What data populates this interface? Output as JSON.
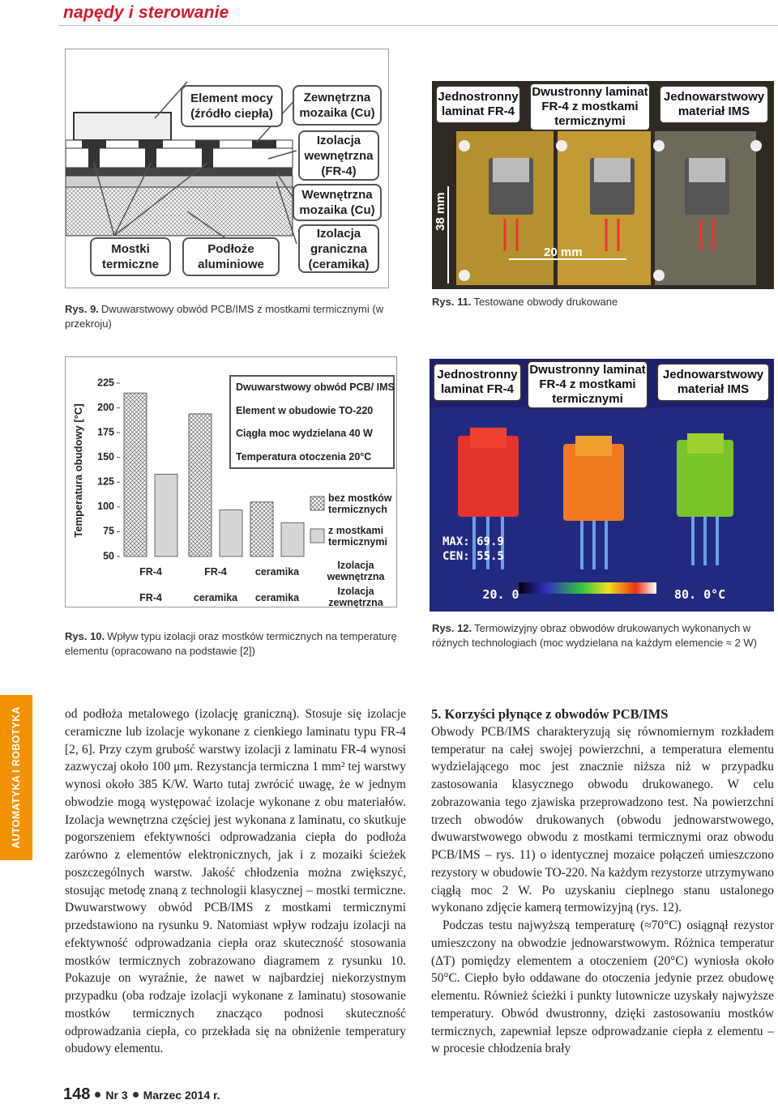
{
  "header": {
    "section": "napędy i sterowanie"
  },
  "sidebar": {
    "label": "AUTOMATYKA I ROBOTYKA"
  },
  "figure9": {
    "labels": {
      "element": "Element mocy (źródło ciepła)",
      "outer_cu": "Zewnętrzna mozaika (Cu)",
      "inner_iso": "Izolacja wewnętrzna (FR-4)",
      "inner_cu": "Wewnętrzna mozaika (Cu)",
      "border_iso": "Izolacja graniczna (ceramika)",
      "bridges": "Mostki termiczne",
      "substrate": "Podłoże aluminiowe"
    },
    "caption_label": "Rys. 9.",
    "caption": "Dwuwarstwowy obwód PCB/IMS z mostkami termicznymi (w przekroju)"
  },
  "figure11": {
    "labels": [
      "Jednostronny laminat FR-4",
      "Dwustronny laminat FR-4 z mostkami termicznymi",
      "Jednowarstwowy materiał IMS"
    ],
    "height_label": "38 mm",
    "width_label": "20 mm",
    "caption_label": "Rys. 11.",
    "caption": "Testowane obwody drukowane"
  },
  "figure12": {
    "labels": [
      "Jednostronny laminat FR-4",
      "Dwustronny laminat FR-4 z mostkami termicznymi",
      "Jednowarstwowy materiał IMS"
    ],
    "max": "MAX: 69.9",
    "cen": "CEN: 55.5",
    "scale_min": "20. 0",
    "scale_max": "80. 0°C",
    "caption_label": "Rys. 12.",
    "caption": "Termowizyjny obraz obwodów drukowanych wykonanych w różnych technologiach (moc wydzielana na każdym elemencie ≈ 2 W)"
  },
  "chart_data": {
    "type": "bar",
    "y_label": "Temperatura obudowy [°C]",
    "ylim": [
      50,
      225
    ],
    "yticks": [
      50,
      75,
      100,
      125,
      150,
      175,
      200,
      225
    ],
    "info": [
      "Dwuwarstwowy obwód PCB/ IMS",
      "Element w obudowie TO-220",
      "Ciągła moc wydzielana 40 W",
      "Temperatura otoczenia 20°C"
    ],
    "category_rows": [
      {
        "name": "Izolacja wewnętrzna",
        "labels": [
          "FR-4",
          "FR-4",
          "ceramika"
        ]
      },
      {
        "name": "Izolacja zewnętrzna",
        "labels": [
          "FR-4",
          "ceramika",
          "ceramika"
        ]
      }
    ],
    "series": [
      {
        "name": "bez mostków termicznych",
        "color": "#ffffff",
        "hatch": true,
        "values": [
          215,
          194,
          105
        ]
      },
      {
        "name": "z mostkami termicznymi",
        "color": "#d6d6d6",
        "hatch": false,
        "values": [
          133,
          97,
          84
        ]
      }
    ],
    "caption_label": "Rys. 10.",
    "caption": "Wpływ typu izolacji oraz mostków termicznych na temperaturę elementu (opracowano na podstawie [2])"
  },
  "body": {
    "left": [
      "od podłoża metalowego (izolację graniczną). Stosuje się izolacje ceramiczne lub izolacje wykonane z cienkiego laminatu typu FR-4 [2, 6]. Przy czym grubość warstwy izolacji z laminatu FR-4 wynosi zazwyczaj około 100 μm. Rezystancja termiczna 1 mm² tej warstwy wynosi około 385 K/W. Warto tutaj zwrócić uwagę, że w jednym obwodzie mogą występować izolacje wykonane z obu materiałów. Izolacja wewnętrzna częściej jest wykonana z laminatu, co skutkuje pogorszeniem efektywności odprowadzania ciepła do podłoża zarówno z elementów elektronicznych, jak i z mozaiki ścieżek poszczególnych warstw. Jakość chłodzenia można zwiększyć, stosując metodę znaną z technologii klasycznej – mostki termiczne. Dwuwarstwowy obwód PCB/IMS z mostkami termicznymi przedstawiono na rysunku 9. Natomiast wpływ rodzaju izolacji na efektywność odprowadzania ciepła oraz skuteczność stosowania mostków termicznych zobrazowano diagramem z rysunku 10. Pokazuje on wyraźnie, że nawet w najbardziej niekorzystnym przypadku (oba rodzaje izolacji wykonane z laminatu) stosowanie mostków termicznych znacząco podnosi skuteczność odprowadzania ciepła, co przekłada się na obniżenie temperatury obudowy elementu."
    ],
    "heading": "5. Korzyści płynące z obwodów PCB/IMS",
    "right": [
      "Obwody PCB/IMS charakteryzują się równomiernym rozkładem temperatur na całej swojej powierzchni, a temperatura elementu wydzielającego moc jest znacznie niższa niż w przypadku zastosowania klasycznego obwodu drukowanego. W celu zobrazowania tego zjawiska przeprowadzono test. Na powierzchni trzech obwodów drukowanych (obwodu jednowarstwowego, dwuwarstwowego obwodu z mostkami termicznymi oraz obwodu PCB/IMS – rys. 11) o identycznej mozaice połączeń umieszczono rezystory w obudowie TO-220. Na każdym rezystorze utrzymywano ciągłą moc 2 W. Po uzyskaniu cieplnego stanu ustalonego wykonano zdjęcie kamerą termowizyjną (rys. 12).",
      "Podczas testu najwyższą temperaturę (≈70°C) osiągnął rezystor umieszczony na obwodzie jednowarstwowym. Różnica temperatur (ΔT) pomiędzy elementem a otoczeniem (20°C) wyniosła około 50°C. Ciepło było oddawane do otoczenia jedynie przez obudowę elementu. Również ścieżki i punkty lutownicze uzyskały najwyższe temperatury. Obwód dwustronny, dzięki zastosowaniu mostków termicznych, zapewniał lepsze odprowadzanie ciepła z elementu – w procesie chłodzenia brały"
    ]
  },
  "footer": {
    "page": "148",
    "issue": "Nr 3",
    "date": "Marzec 2014 r."
  }
}
